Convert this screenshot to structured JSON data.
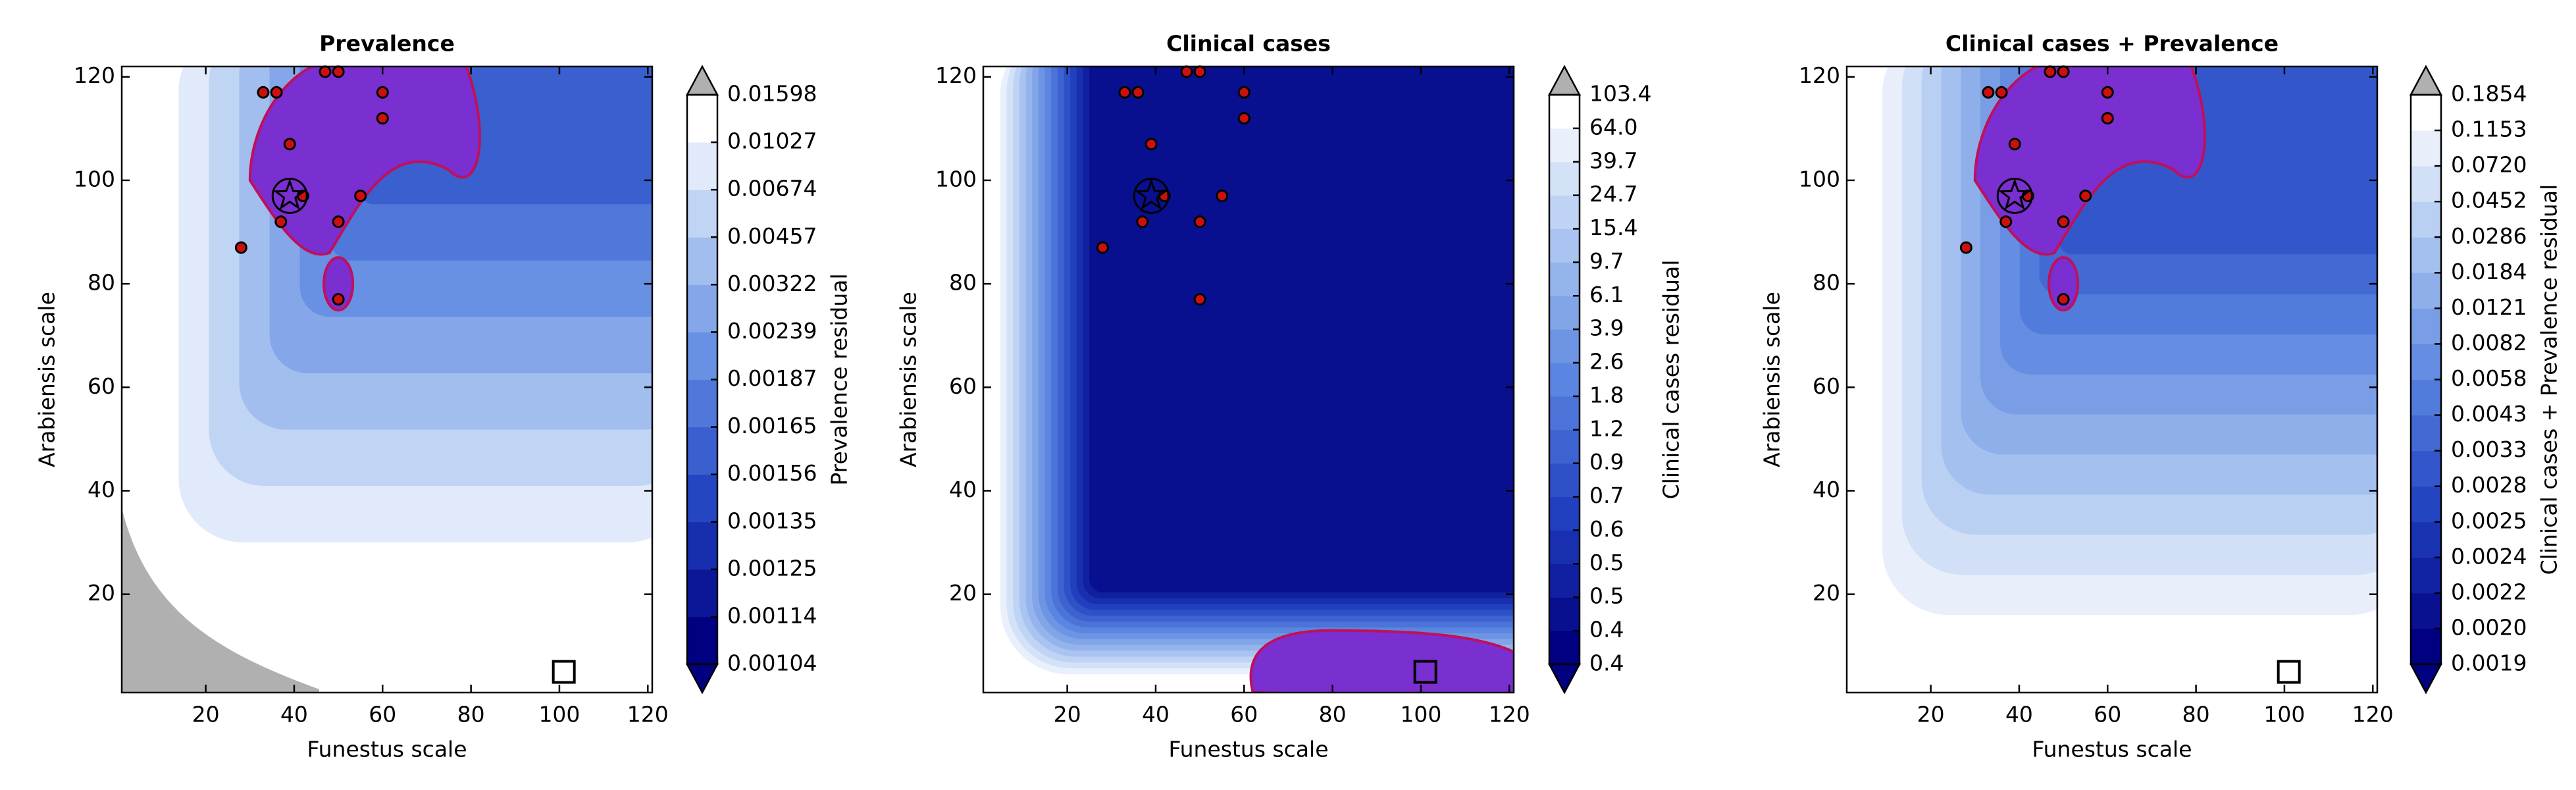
{
  "chart_data": [
    {
      "type": "contour",
      "title": "Prevalence",
      "xlabel": "Funestus scale",
      "ylabel": "Arabiensis scale",
      "xlim": [
        1,
        121
      ],
      "ylim": [
        1,
        122
      ],
      "xticks": [
        20,
        40,
        60,
        80,
        100,
        120
      ],
      "yticks": [
        20,
        40,
        60,
        80,
        100,
        120
      ],
      "colorbar": {
        "label": "Prevalence residual",
        "ticks": [
          0.00104,
          0.00114,
          0.00125,
          0.00135,
          0.00156,
          0.00165,
          0.00187,
          0.00239,
          0.00322,
          0.00457,
          0.00674,
          0.01027,
          0.01598
        ]
      },
      "cmap": [
        "#000080",
        "#2040c0",
        "#5a85e0",
        "#a9c4f0",
        "#ffffff"
      ],
      "under_color": "#000080",
      "over_color": "#b0b0b0",
      "points": {
        "color": "#cc1010",
        "x": [
          28,
          33,
          36,
          37,
          39,
          42,
          47,
          50,
          50,
          50,
          55,
          60,
          60
        ],
        "y": [
          87,
          117,
          117,
          92,
          107,
          97,
          121,
          121,
          92,
          77,
          97,
          117,
          112
        ]
      },
      "star": {
        "x": 39,
        "y": 97
      },
      "square": {
        "x": 101,
        "y": 5
      }
    },
    {
      "type": "contour",
      "title": "Clinical cases",
      "xlabel": "Funestus scale",
      "ylabel": "Arabiensis scale",
      "xlim": [
        1,
        121
      ],
      "ylim": [
        1,
        122
      ],
      "xticks": [
        20,
        40,
        60,
        80,
        100,
        120
      ],
      "yticks": [
        20,
        40,
        60,
        80,
        100,
        120
      ],
      "colorbar": {
        "label": "Clinical cases residual",
        "ticks": [
          0.4,
          0.4,
          0.5,
          0.5,
          0.6,
          0.7,
          0.9,
          1.2,
          1.8,
          2.6,
          3.9,
          6.1,
          9.7,
          15.4,
          24.7,
          39.7,
          {
            "value": 64,
            "label": "64.0"
          },
          103.4
        ]
      },
      "cmap": [
        "#000080",
        "#2040c0",
        "#5a85e0",
        "#a9c4f0",
        "#ffffff"
      ],
      "under_color": "#000080",
      "over_color": "#b0b0b0",
      "points": {
        "color": "#cc1010",
        "x": [
          28,
          33,
          36,
          37,
          39,
          42,
          47,
          50,
          50,
          50,
          55,
          60,
          60
        ],
        "y": [
          87,
          117,
          117,
          92,
          107,
          97,
          121,
          121,
          92,
          77,
          97,
          117,
          112
        ]
      },
      "star": {
        "x": 39,
        "y": 97
      },
      "square": {
        "x": 101,
        "y": 5
      }
    },
    {
      "type": "contour",
      "title": "Clinical cases + Prevalence",
      "xlabel": "Funestus scale",
      "ylabel": "Arabiensis scale",
      "xlim": [
        1,
        121
      ],
      "ylim": [
        1,
        122
      ],
      "xticks": [
        20,
        40,
        60,
        80,
        100,
        120
      ],
      "yticks": [
        20,
        40,
        60,
        80,
        100,
        120
      ],
      "colorbar": {
        "label": "Clinical cases + Prevalence residual",
        "ticks": [
          0.0019,
          {
            "value": 0.002,
            "label": "0.0020"
          },
          0.0022,
          0.0024,
          0.0025,
          0.0028,
          0.0033,
          0.0043,
          0.0058,
          0.0082,
          0.0121,
          0.0184,
          0.0286,
          0.0452,
          {
            "value": 0.072,
            "label": "0.0720"
          },
          0.1153,
          0.1854
        ]
      },
      "cmap": [
        "#000080",
        "#2040c0",
        "#5a85e0",
        "#a9c4f0",
        "#ffffff"
      ],
      "under_color": "#000080",
      "over_color": "#b0b0b0",
      "points": {
        "color": "#cc1010",
        "x": [
          28,
          33,
          36,
          37,
          39,
          42,
          47,
          50,
          50,
          50,
          55,
          60,
          60
        ],
        "y": [
          87,
          117,
          117,
          92,
          107,
          97,
          121,
          121,
          92,
          77,
          97,
          117,
          112
        ]
      },
      "star": {
        "x": 39,
        "y": 97
      },
      "square": {
        "x": 101,
        "y": 5
      }
    }
  ]
}
